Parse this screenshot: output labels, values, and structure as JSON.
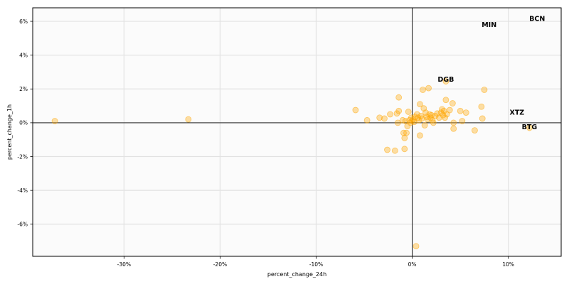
{
  "chart_data": {
    "type": "scatter",
    "title": "",
    "xlabel": "percent_change_24h",
    "ylabel": "percent_change_1h",
    "xlim": [
      -39.5,
      15.5
    ],
    "ylim": [
      -7.9,
      6.8
    ],
    "xticks": [
      -30,
      -20,
      -10,
      0,
      10
    ],
    "yticks": [
      -6,
      -4,
      -2,
      0,
      2,
      4,
      6
    ],
    "tick_format": "percent",
    "grid": true,
    "reference_lines": {
      "x": 0,
      "y": 0
    },
    "marker_color": "#ffa500",
    "marker_opacity": 0.35,
    "series": [
      {
        "points": [
          [
            -37.2,
            0.1
          ],
          [
            -23.3,
            0.2
          ],
          [
            -5.9,
            0.75
          ],
          [
            -4.7,
            0.15
          ],
          [
            -3.4,
            0.3
          ],
          [
            -2.9,
            0.25
          ],
          [
            -2.6,
            -1.6
          ],
          [
            -2.3,
            0.5
          ],
          [
            -1.8,
            -1.65
          ],
          [
            -1.6,
            0.55
          ],
          [
            -1.5,
            0.0
          ],
          [
            -1.4,
            0.7
          ],
          [
            -1.4,
            1.5
          ],
          [
            -1.0,
            0.15
          ],
          [
            -0.9,
            -0.6
          ],
          [
            -0.8,
            -1.55
          ],
          [
            -0.8,
            -0.9
          ],
          [
            -0.7,
            0.1
          ],
          [
            -0.6,
            -0.6
          ],
          [
            -0.5,
            -0.2
          ],
          [
            -0.4,
            0.65
          ],
          [
            -0.3,
            0.15
          ],
          [
            -0.2,
            0.0
          ],
          [
            -0.1,
            0.3
          ],
          [
            0.0,
            0.1
          ],
          [
            0.1,
            0.2
          ],
          [
            0.2,
            0.05
          ],
          [
            0.3,
            0.35
          ],
          [
            0.4,
            -7.3
          ],
          [
            0.5,
            0.5
          ],
          [
            0.6,
            0.3
          ],
          [
            0.7,
            0.15
          ],
          [
            0.8,
            1.1
          ],
          [
            0.8,
            -0.75
          ],
          [
            0.9,
            0.4
          ],
          [
            1.0,
            0.25
          ],
          [
            1.1,
            1.95
          ],
          [
            1.2,
            0.85
          ],
          [
            1.3,
            -0.15
          ],
          [
            1.4,
            0.6
          ],
          [
            1.5,
            0.35
          ],
          [
            1.6,
            0.2
          ],
          [
            1.7,
            2.05
          ],
          [
            1.8,
            0.5
          ],
          [
            1.9,
            0.3
          ],
          [
            2.0,
            0.45
          ],
          [
            2.1,
            0.15
          ],
          [
            2.2,
            0.0
          ],
          [
            2.4,
            0.4
          ],
          [
            2.6,
            0.55
          ],
          [
            2.8,
            0.3
          ],
          [
            3.0,
            0.6
          ],
          [
            3.1,
            0.8
          ],
          [
            3.2,
            0.45
          ],
          [
            3.3,
            0.7
          ],
          [
            3.4,
            0.3
          ],
          [
            3.5,
            2.45
          ],
          [
            3.5,
            1.35
          ],
          [
            3.6,
            0.5
          ],
          [
            3.9,
            0.75
          ],
          [
            4.2,
            1.15
          ],
          [
            4.3,
            0.0
          ],
          [
            4.3,
            -0.35
          ],
          [
            5.0,
            0.7
          ],
          [
            5.2,
            0.1
          ],
          [
            5.6,
            0.6
          ],
          [
            6.5,
            -0.45
          ],
          [
            7.2,
            0.95
          ],
          [
            7.3,
            0.25
          ],
          [
            7.5,
            1.95
          ],
          [
            12.2,
            -0.3
          ]
        ]
      }
    ],
    "annotations": [
      {
        "text": "BCN",
        "x": 13.0,
        "y": 6.15
      },
      {
        "text": "MIN",
        "x": 8.0,
        "y": 5.8
      },
      {
        "text": "DGB",
        "x": 3.5,
        "y": 2.55
      },
      {
        "text": "XTZ",
        "x": 10.9,
        "y": 0.6
      },
      {
        "text": "BTG",
        "x": 12.2,
        "y": -0.25
      }
    ]
  }
}
